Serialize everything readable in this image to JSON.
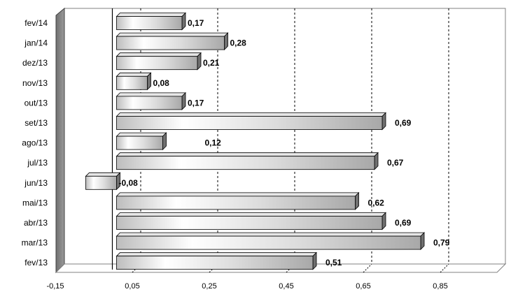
{
  "chart_data": {
    "type": "bar",
    "orientation": "horizontal",
    "categories": [
      "fev/13",
      "mar/13",
      "abr/13",
      "mai/13",
      "jun/13",
      "jul/13",
      "ago/13",
      "set/13",
      "out/13",
      "nov/13",
      "dez/13",
      "jan/14",
      "fev/14"
    ],
    "values": [
      0.51,
      0.79,
      0.69,
      0.62,
      -0.08,
      0.67,
      0.12,
      0.69,
      0.17,
      0.08,
      0.21,
      0.28,
      0.17
    ],
    "data_labels": [
      "0,51",
      "0,79",
      "0,69",
      "0,62",
      "-0,08",
      "0,67",
      "0,12",
      "0,69",
      "0,17",
      "0,08",
      "0,21",
      "0,28",
      "0,17"
    ],
    "x_ticks": [
      -0.15,
      0.05,
      0.25,
      0.45,
      0.65,
      0.85
    ],
    "x_tick_labels": [
      "-0,15",
      "0,05",
      "0,25",
      "0,45",
      "0,65",
      "0,85"
    ],
    "xlim": [
      -0.15,
      1.0
    ],
    "title": "",
    "xlabel": "",
    "ylabel": "",
    "grid": "vertical dashed",
    "legend": "none",
    "colors": {
      "bar_fill": "#c8c8c8",
      "bar_highlight": "#ffffff",
      "bar_edge": "#000000",
      "side_wall": "#808080"
    }
  }
}
